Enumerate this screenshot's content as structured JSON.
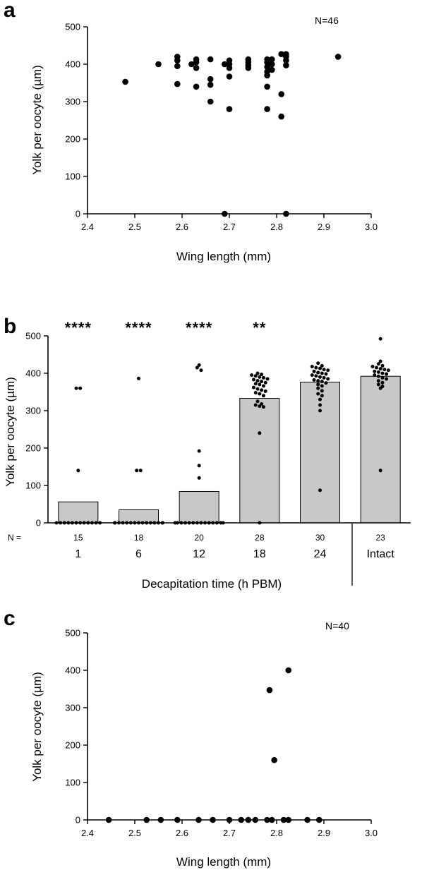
{
  "chart_data": [
    {
      "panel": "a",
      "type": "scatter",
      "annotation": "N=46",
      "xlabel": "Wing length (mm)",
      "ylabel": "Yolk per oocyte (µm)",
      "xlim": [
        2.4,
        3.0
      ],
      "ylim": [
        0,
        500
      ],
      "xticks": [
        "2.4",
        "2.5",
        "2.6",
        "2.7",
        "2.8",
        "2.9",
        "3.0"
      ],
      "yticks": [
        "0",
        "100",
        "200",
        "300",
        "400",
        "500"
      ],
      "grid": false,
      "points": [
        [
          2.48,
          353
        ],
        [
          2.55,
          400
        ],
        [
          2.59,
          420
        ],
        [
          2.59,
          410
        ],
        [
          2.59,
          395
        ],
        [
          2.59,
          347
        ],
        [
          2.62,
          400
        ],
        [
          2.63,
          413
        ],
        [
          2.63,
          405
        ],
        [
          2.63,
          390
        ],
        [
          2.63,
          340
        ],
        [
          2.66,
          413
        ],
        [
          2.66,
          360
        ],
        [
          2.66,
          345
        ],
        [
          2.66,
          300
        ],
        [
          2.69,
          400
        ],
        [
          2.69,
          0
        ],
        [
          2.7,
          410
        ],
        [
          2.7,
          400
        ],
        [
          2.7,
          390
        ],
        [
          2.7,
          367
        ],
        [
          2.7,
          280
        ],
        [
          2.74,
          413
        ],
        [
          2.74,
          405
        ],
        [
          2.74,
          397
        ],
        [
          2.74,
          390
        ],
        [
          2.78,
          413
        ],
        [
          2.78,
          405
        ],
        [
          2.78,
          393
        ],
        [
          2.78,
          380
        ],
        [
          2.78,
          370
        ],
        [
          2.78,
          340
        ],
        [
          2.78,
          280
        ],
        [
          2.79,
          413
        ],
        [
          2.79,
          400
        ],
        [
          2.79,
          385
        ],
        [
          2.81,
          427
        ],
        [
          2.81,
          320
        ],
        [
          2.81,
          260
        ],
        [
          2.82,
          427
        ],
        [
          2.82,
          420
        ],
        [
          2.82,
          410
        ],
        [
          2.82,
          397
        ],
        [
          2.82,
          0
        ],
        [
          2.93,
          420
        ]
      ]
    },
    {
      "panel": "b",
      "type": "bar",
      "xlabel": "Decapitation time (h PBM)",
      "ylabel": "Yolk per oocyte (µm)",
      "ylim": [
        0,
        500
      ],
      "yticks": [
        "0",
        "100",
        "200",
        "300",
        "400",
        "500"
      ],
      "n_prefix": "N =",
      "categories": [
        "1",
        "6",
        "12",
        "18",
        "24",
        "Intact"
      ],
      "values": [
        56,
        35,
        84,
        333,
        376,
        392
      ],
      "n": [
        "15",
        "18",
        "20",
        "28",
        "30",
        "23"
      ],
      "significance": [
        "****",
        "****",
        "****",
        "**",
        "",
        ""
      ],
      "bar_color": "#c8c8c8",
      "points": [
        [
          360,
          360,
          140,
          0,
          0,
          0,
          0,
          0,
          0,
          0,
          0,
          0,
          0,
          0,
          0
        ],
        [
          386,
          140,
          140,
          0,
          0,
          0,
          0,
          0,
          0,
          0,
          0,
          0,
          0,
          0,
          0,
          0,
          0,
          0
        ],
        [
          422,
          415,
          408,
          192,
          153,
          120,
          0,
          0,
          0,
          0,
          0,
          0,
          0,
          0,
          0,
          0,
          0,
          0,
          0,
          0
        ],
        [
          400,
          397,
          395,
          393,
          390,
          388,
          385,
          383,
          380,
          378,
          375,
          372,
          370,
          366,
          362,
          358,
          355,
          352,
          348,
          345,
          340,
          325,
          318,
          315,
          312,
          310,
          240,
          0
        ],
        [
          427,
          420,
          418,
          415,
          413,
          410,
          408,
          405,
          402,
          400,
          398,
          395,
          393,
          390,
          388,
          385,
          382,
          380,
          378,
          374,
          370,
          366,
          360,
          353,
          345,
          340,
          330,
          315,
          300,
          87
        ],
        [
          492,
          432,
          425,
          420,
          418,
          415,
          412,
          410,
          408,
          405,
          403,
          400,
          398,
          395,
          392,
          388,
          385,
          380,
          375,
          370,
          365,
          360,
          140
        ]
      ]
    },
    {
      "panel": "c",
      "type": "scatter",
      "annotation": "N=40",
      "xlabel": "Wing length (mm)",
      "ylabel": "Yolk per oocyte (µm)",
      "xlim": [
        2.4,
        3.0
      ],
      "ylim": [
        0,
        500
      ],
      "xticks": [
        "2.4",
        "2.5",
        "2.6",
        "2.7",
        "2.8",
        "2.9",
        "3.0"
      ],
      "yticks": [
        "0",
        "100",
        "200",
        "300",
        "400",
        "500"
      ],
      "grid": false,
      "points": [
        [
          2.445,
          0
        ],
        [
          2.525,
          0
        ],
        [
          2.555,
          0
        ],
        [
          2.59,
          0
        ],
        [
          2.635,
          0
        ],
        [
          2.665,
          0
        ],
        [
          2.7,
          0
        ],
        [
          2.725,
          0
        ],
        [
          2.74,
          0
        ],
        [
          2.755,
          0
        ],
        [
          2.78,
          0
        ],
        [
          2.79,
          0
        ],
        [
          2.815,
          0
        ],
        [
          2.825,
          0
        ],
        [
          2.865,
          0
        ],
        [
          2.89,
          0
        ],
        [
          2.785,
          347
        ],
        [
          2.795,
          160
        ],
        [
          2.825,
          400
        ]
      ]
    }
  ],
  "labels": {
    "panel_a": "a",
    "panel_b": "b",
    "panel_c": "c"
  }
}
